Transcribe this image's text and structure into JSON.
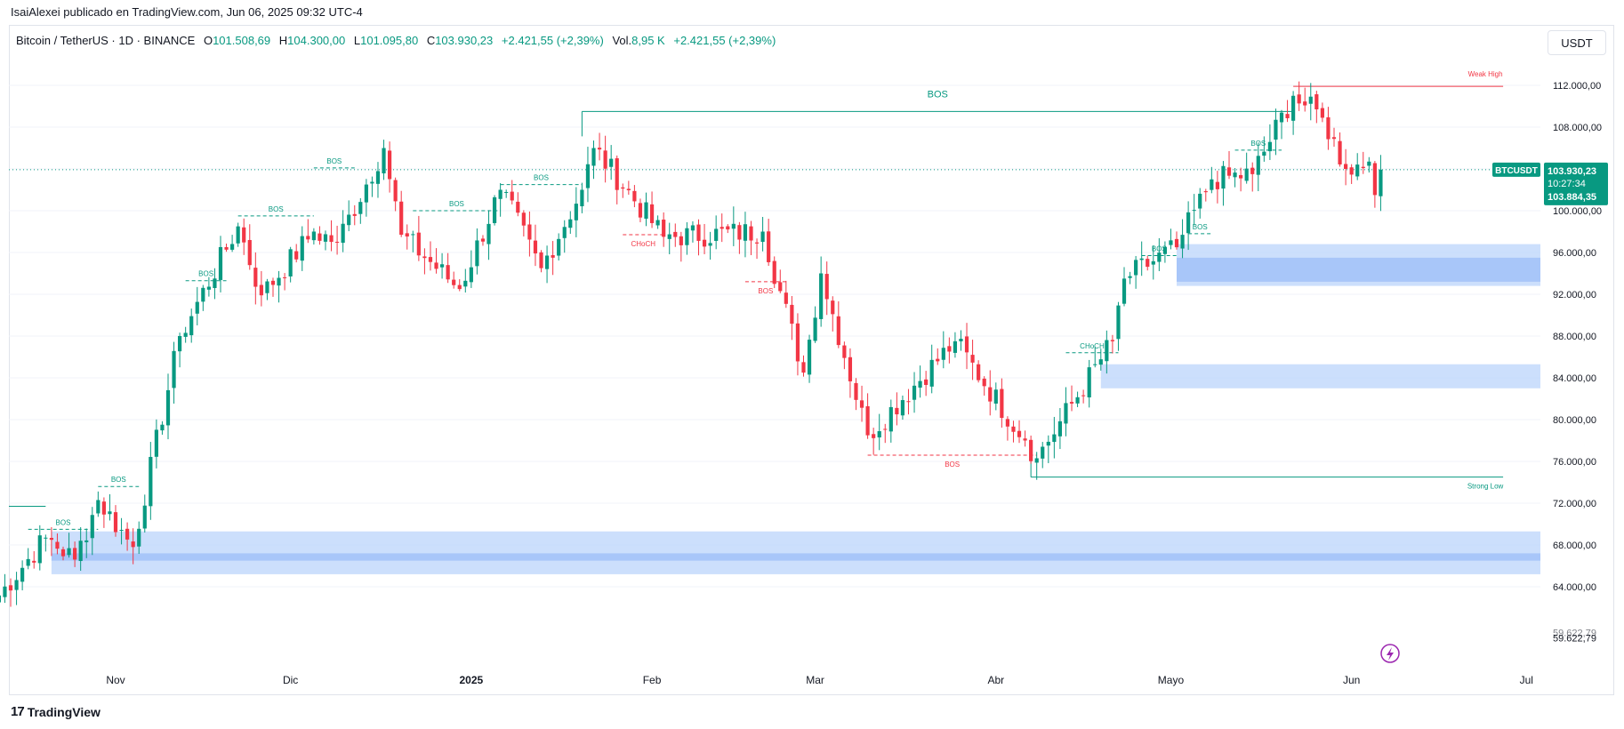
{
  "caption": "IsaiAlexei publicado en TradingView.com, Jun 06, 2025 09:32 UTC-4",
  "legend": {
    "symbol": "Bitcoin / TetherUS · 1D · BINANCE",
    "o_label": "O",
    "o_value": "101.508,69",
    "h_label": "H",
    "h_value": "104.300,00",
    "l_label": "L",
    "l_value": "101.095,80",
    "c_label": "C",
    "c_value": "103.930,23",
    "change": "+2.421,55 (+2,39%)",
    "vol_label": "Vol.",
    "vol_value": "8,95 K",
    "vol_change": "+2.421,55 (+2,39%)"
  },
  "currency_button": "USDT",
  "brand": {
    "logo": "17",
    "name": "TradingView"
  },
  "colors": {
    "up": "#089981",
    "down": "#f23645",
    "zone": "#bbd4fb",
    "zone_strong": "#a4c3f8",
    "grid": "#f0f3fa"
  },
  "price_scale": {
    "ticks": [
      "112.000,00",
      "108.000,00",
      "104.000,00",
      "100.000,00",
      "96.000,00",
      "92.000,00",
      "88.000,00",
      "84.000,00",
      "80.000,00",
      "76.000,00",
      "72.000,00",
      "68.000,00",
      "64.000,00",
      "59.622,79"
    ],
    "tick_values": [
      112000,
      108000,
      104000,
      100000,
      96000,
      92000,
      88000,
      84000,
      80000,
      76000,
      72000,
      68000,
      64000,
      59622.79
    ],
    "current_tag": {
      "symbol": "BTCUSDT",
      "price": "103.930,23",
      "countdown": "10:27:34",
      "second_price": "103.884,35"
    },
    "strike_label": "59.622,79"
  },
  "time_axis": {
    "labels": [
      "Nov",
      "Dic",
      "2025",
      "Feb",
      "Mar",
      "Abr",
      "Mayo",
      "Jun",
      "Jul"
    ]
  },
  "annotations": {
    "bos": "BOS",
    "choch": "CHoCH",
    "weak_high": "Weak High",
    "strong_low": "Strong Low"
  },
  "chart_data": {
    "type": "candlestick",
    "symbol": "BTCUSDT",
    "timeframe": "1D",
    "ylim": [
      58000,
      116000
    ],
    "x_start": "2024-10-11",
    "x_end": "2025-07-01",
    "last_candle": {
      "date": "2025-06-06",
      "open": 101508.69,
      "high": 104300.0,
      "low": 101095.8,
      "close": 103930.23
    },
    "anchors": [
      {
        "date": "2024-10-11",
        "price": 62500
      },
      {
        "date": "2024-10-20",
        "price": 68700
      },
      {
        "date": "2024-10-25",
        "price": 66600
      },
      {
        "date": "2024-10-29",
        "price": 72300
      },
      {
        "date": "2024-11-04",
        "price": 67800
      },
      {
        "date": "2024-11-12",
        "price": 88000
      },
      {
        "date": "2024-11-22",
        "price": 98500
      },
      {
        "date": "2024-11-26",
        "price": 91900
      },
      {
        "date": "2024-12-05",
        "price": 98000
      },
      {
        "date": "2024-12-09",
        "price": 97000
      },
      {
        "date": "2024-12-17",
        "price": 106000
      },
      {
        "date": "2024-12-20",
        "price": 97700
      },
      {
        "date": "2024-12-30",
        "price": 92500
      },
      {
        "date": "2025-01-06",
        "price": 102000
      },
      {
        "date": "2025-01-13",
        "price": 94500
      },
      {
        "date": "2025-01-20",
        "price": 102000
      },
      {
        "date": "2025-01-22",
        "price": 106000
      },
      {
        "date": "2025-02-03",
        "price": 97500
      },
      {
        "date": "2025-02-20",
        "price": 98000
      },
      {
        "date": "2025-02-27",
        "price": 84500
      },
      {
        "date": "2025-03-02",
        "price": 94000
      },
      {
        "date": "2025-03-10",
        "price": 78500
      },
      {
        "date": "2025-03-25",
        "price": 87500
      },
      {
        "date": "2025-04-06",
        "price": 78000
      },
      {
        "date": "2025-04-08",
        "price": 76300
      },
      {
        "date": "2025-04-21",
        "price": 87500
      },
      {
        "date": "2025-04-23",
        "price": 93500
      },
      {
        "date": "2025-05-02",
        "price": 96500
      },
      {
        "date": "2025-05-08",
        "price": 103000
      },
      {
        "date": "2025-05-15",
        "price": 103500
      },
      {
        "date": "2025-05-22",
        "price": 111000
      },
      {
        "date": "2025-05-27",
        "price": 108900
      },
      {
        "date": "2025-05-31",
        "price": 104000
      },
      {
        "date": "2025-06-04",
        "price": 104700
      },
      {
        "date": "2025-06-05",
        "price": 101500
      },
      {
        "date": "2025-06-06",
        "price": 103930
      }
    ],
    "structure_lines": [
      {
        "label": "BOS",
        "color": "#089981",
        "style": "dashed",
        "x1": "2024-10-17",
        "x2": "2024-10-29",
        "price": 69500
      },
      {
        "label": "BOS",
        "color": "#089981",
        "style": "dashed",
        "x1": "2024-10-29",
        "x2": "2024-11-05",
        "price": 73600
      },
      {
        "label": "BOS",
        "color": "#089981",
        "style": "dashed",
        "x1": "2024-11-13",
        "x2": "2024-11-20",
        "price": 93300
      },
      {
        "label": "BOS",
        "color": "#089981",
        "style": "dashed",
        "x1": "2024-11-22",
        "x2": "2024-12-05",
        "price": 99500
      },
      {
        "label": "BOS",
        "color": "#089981",
        "style": "dashed",
        "x1": "2024-12-05",
        "x2": "2024-12-12",
        "price": 104100
      },
      {
        "label": "BOS",
        "color": "#089981",
        "style": "dashed",
        "x1": "2024-12-22",
        "x2": "2025-01-06",
        "price": 100000
      },
      {
        "label": "BOS",
        "color": "#089981",
        "style": "dashed",
        "x1": "2025-01-06",
        "x2": "2025-01-20",
        "price": 102500
      },
      {
        "label": "BOS",
        "color": "#089981",
        "style": "solid",
        "x1": "2025-01-20",
        "x2": "2025-05-22",
        "price": 109500
      },
      {
        "label": "CHoCH",
        "color": "#f23645",
        "style": "dashed",
        "x1": "2025-01-27",
        "x2": "2025-02-03",
        "price": 97700
      },
      {
        "label": "BOS",
        "color": "#f23645",
        "style": "dashed",
        "x1": "2025-02-17",
        "x2": "2025-02-24",
        "price": 93200
      },
      {
        "label": "BOS",
        "color": "#f23645",
        "style": "dashed",
        "x1": "2025-03-10",
        "x2": "2025-04-08",
        "price": 76600
      },
      {
        "label": "CHoCH",
        "color": "#089981",
        "style": "dashed",
        "x1": "2025-04-13",
        "x2": "2025-04-22",
        "price": 86400
      },
      {
        "label": "BOS",
        "color": "#089981",
        "style": "dashed",
        "x1": "2025-04-26",
        "x2": "2025-05-02",
        "price": 95700
      },
      {
        "label": "BOS",
        "color": "#089981",
        "style": "dashed",
        "x1": "2025-05-04",
        "x2": "2025-05-08",
        "price": 97800
      },
      {
        "label": "BOS",
        "color": "#089981",
        "style": "dashed",
        "x1": "2025-05-12",
        "x2": "2025-05-20",
        "price": 105800
      }
    ],
    "weak_high": {
      "x1": "2025-05-22",
      "x2": "2025-06-27",
      "price": 111900,
      "label": "Weak High"
    },
    "strong_low": {
      "x1": "2025-04-07",
      "x2": "2025-06-27",
      "price": 74500,
      "label": "Strong Low"
    },
    "demand_zones": [
      {
        "x1": "2024-10-21",
        "top": 69300,
        "bottom": 65200,
        "inner_top": 67200,
        "inner_bottom": 66500
      },
      {
        "x1": "2025-04-19",
        "top": 85300,
        "bottom": 83000
      },
      {
        "x1": "2025-05-02",
        "top": 96800,
        "bottom": 92800,
        "inner_top": 95500,
        "inner_bottom": 93200
      }
    ],
    "left_level": {
      "x2": "2024-10-20",
      "price": 71700
    },
    "current_price_line": 103930.23
  }
}
